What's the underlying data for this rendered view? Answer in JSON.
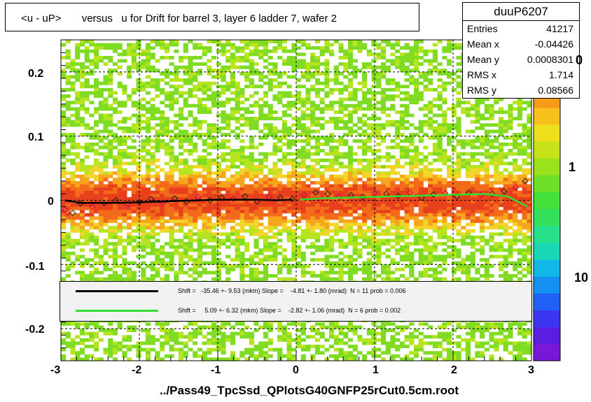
{
  "title": "<u - uP>       versus   u for Drift for barrel 3, layer 6 ladder 7, wafer 2",
  "stats": {
    "name": "duuP6207",
    "rows": [
      {
        "k": "Entries",
        "v": "41217"
      },
      {
        "k": "Mean x",
        "v": "-0.04426"
      },
      {
        "k": "Mean y",
        "v": "0.0008301"
      },
      {
        "k": "RMS x",
        "v": "1.714"
      },
      {
        "k": "RMS y",
        "v": "0.08566"
      }
    ]
  },
  "legend": [
    {
      "color": "#000000",
      "text": "Shift =   -35.46 +- 9.53 (mkm) Slope =    -4.81 +- 1.80 (mrad)  N = 11 prob = 0.006"
    },
    {
      "color": "#33dd33",
      "text": "Shift =     5.09 +- 6.32 (mkm) Slope =    -2.82 +- 1.06 (mrad)  N = 6 prob = 0.002"
    }
  ],
  "footer": "../Pass49_TpcSsd_QPlotsG40GNFP25rCut0.5cm.root",
  "z_labels": [
    "0",
    "1",
    "10"
  ],
  "chart_data": {
    "type": "heatmap",
    "xlim": [
      -3,
      3
    ],
    "ylim": [
      -0.25,
      0.25
    ],
    "xticks": [
      "-3",
      "-2",
      "-1",
      "0",
      "1",
      "2",
      "3"
    ],
    "yticks": [
      "0.2",
      "0.1",
      "0",
      "-0.1",
      "-0.2"
    ],
    "grid": true,
    "series": [
      {
        "name": "profile black",
        "color": "#000000",
        "x": [
          -2.95,
          -2.75,
          -2.5,
          -2.25,
          -2.0,
          -1.75,
          -1.5,
          -1.25,
          -1.0,
          -0.75,
          -0.5,
          -0.25,
          -0.05
        ],
        "y": [
          0.0,
          -0.004,
          -0.004,
          -0.004,
          -0.003,
          -0.002,
          -0.001,
          0.0,
          0.001,
          0.001,
          0.001,
          0.0,
          0.001
        ]
      },
      {
        "name": "profile green",
        "color": "#33dd33",
        "x": [
          0.05,
          0.3,
          0.6,
          0.9,
          1.2,
          1.5,
          1.8,
          2.1,
          2.4,
          2.7,
          2.95
        ],
        "y": [
          0.001,
          0.003,
          0.004,
          0.005,
          0.006,
          0.007,
          0.008,
          0.009,
          0.01,
          0.006,
          -0.01
        ]
      }
    ],
    "points": {
      "x": [
        -2.95,
        -2.85,
        -2.75,
        -2.6,
        -2.45,
        -2.3,
        -2.15,
        -2.0,
        -1.85,
        -1.7,
        -1.55,
        -1.4,
        -1.25,
        -1.1,
        -0.95,
        -0.8,
        -0.65,
        -0.5,
        -0.35,
        -0.2,
        -0.05,
        0.1,
        0.25,
        0.4,
        0.55,
        0.7,
        0.85,
        1.0,
        1.15,
        1.3,
        1.45,
        1.6,
        1.75,
        1.9,
        2.05,
        2.2,
        2.35,
        2.5,
        2.65,
        2.8,
        2.92
      ],
      "y": [
        -0.015,
        -0.02,
        -0.005,
        -0.01,
        -0.004,
        0.0,
        -0.006,
        -0.003,
        0.002,
        -0.004,
        0.003,
        -0.002,
        0.005,
        0.0,
        0.004,
        0.002,
        0.006,
        -0.002,
        0.005,
        0.004,
        0.002,
        0.008,
        0.012,
        0.01,
        0.006,
        0.008,
        0.005,
        0.012,
        0.01,
        0.007,
        0.012,
        0.004,
        0.009,
        0.011,
        0.006,
        0.012,
        0.008,
        0.01,
        0.014,
        0.02,
        0.03
      ]
    }
  }
}
